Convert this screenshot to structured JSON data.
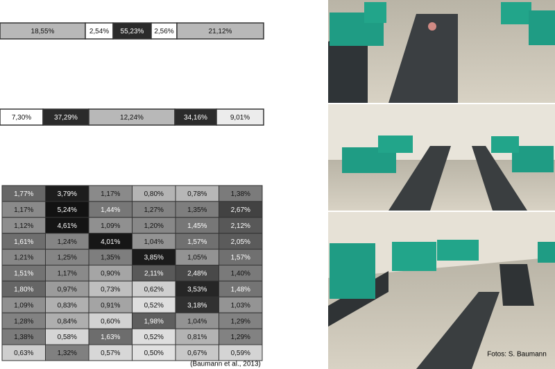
{
  "rows": [
    {
      "cells": [
        {
          "text": "18,55%",
          "fill": "#b8b8b8"
        },
        {
          "text": "2,54%",
          "fill": "#ffffff"
        },
        {
          "text": "55,23%",
          "fill": "#2b2b2b"
        },
        {
          "text": "2,56%",
          "fill": "#ffffff"
        },
        {
          "text": "21,12%",
          "fill": "#b8b8b8"
        }
      ]
    },
    {
      "cells": [
        {
          "text": "7,30%",
          "fill": "#ffffff"
        },
        {
          "text": "37,29%",
          "fill": "#2b2b2b"
        },
        {
          "text": "12,24%",
          "fill": "#b8b8b8"
        },
        {
          "text": "34,16%",
          "fill": "#2b2b2b"
        },
        {
          "text": "9,01%",
          "fill": "#ececec"
        }
      ]
    }
  ],
  "chart_data": {
    "type": "heatmap",
    "values": [
      [
        1.77,
        3.79,
        1.17,
        0.8,
        0.78,
        1.38
      ],
      [
        1.17,
        5.24,
        1.44,
        1.27,
        1.35,
        2.67
      ],
      [
        1.12,
        4.61,
        1.09,
        1.2,
        1.45,
        2.12
      ],
      [
        1.61,
        1.24,
        4.01,
        1.04,
        1.57,
        2.05
      ],
      [
        1.21,
        1.25,
        1.35,
        3.85,
        1.05,
        1.57
      ],
      [
        1.51,
        1.17,
        0.9,
        2.11,
        2.48,
        1.4
      ],
      [
        1.8,
        0.97,
        0.73,
        0.62,
        3.53,
        1.48
      ],
      [
        1.09,
        0.83,
        0.91,
        0.52,
        3.18,
        1.03
      ],
      [
        1.28,
        0.84,
        0.6,
        1.98,
        1.04,
        1.29
      ],
      [
        1.38,
        0.58,
        1.63,
        0.52,
        0.81,
        1.29
      ],
      [
        0.63,
        1.32,
        0.57,
        0.5,
        0.67,
        0.59
      ]
    ],
    "value_labels": [
      [
        "1,77%",
        "3,79%",
        "1,17%",
        "0,80%",
        "0,78%",
        "1,38%"
      ],
      [
        "1,17%",
        "5,24%",
        "1,44%",
        "1,27%",
        "1,35%",
        "2,67%"
      ],
      [
        "1,12%",
        "4,61%",
        "1,09%",
        "1,20%",
        "1,45%",
        "2,12%"
      ],
      [
        "1,61%",
        "1,24%",
        "4,01%",
        "1,04%",
        "1,57%",
        "2,05%"
      ],
      [
        "1,21%",
        "1,25%",
        "1,35%",
        "3,85%",
        "1,05%",
        "1,57%"
      ],
      [
        "1,51%",
        "1,17%",
        "0,90%",
        "2,11%",
        "2,48%",
        "1,40%"
      ],
      [
        "1,80%",
        "0,97%",
        "0,73%",
        "0,62%",
        "3,53%",
        "1,48%"
      ],
      [
        "1,09%",
        "0,83%",
        "0,91%",
        "0,52%",
        "3,18%",
        "1,03%"
      ],
      [
        "1,28%",
        "0,84%",
        "0,60%",
        "1,98%",
        "1,04%",
        "1,29%"
      ],
      [
        "1,38%",
        "0,58%",
        "1,63%",
        "0,52%",
        "0,81%",
        "1,29%"
      ],
      [
        "0,63%",
        "1,32%",
        "0,57%",
        "0,50%",
        "0,67%",
        "0,59%"
      ]
    ]
  },
  "citation": "(Baumann et al., 2013)",
  "photo_credit": "Fotos: S. Baumann"
}
